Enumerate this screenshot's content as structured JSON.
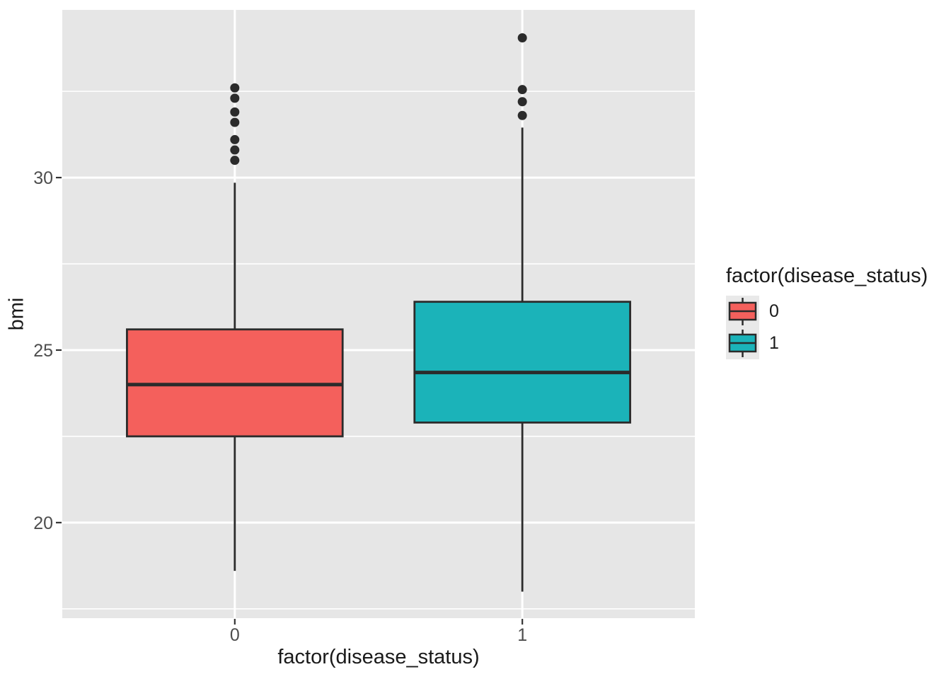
{
  "figure": {
    "background": "#FFFFFF"
  },
  "chart_data": {
    "type": "boxplot",
    "title": "",
    "xlabel": "factor(disease_status)",
    "ylabel": "bmi",
    "categories": [
      "0",
      "1"
    ],
    "y_ticks": [
      20,
      25,
      30
    ],
    "y_minor_ticks": [
      17.5,
      22.5,
      27.5,
      32.5
    ],
    "ylim": [
      17.23,
      34.86
    ],
    "grid": true,
    "legend_position": "right",
    "panel_bg": "#E6E6E6",
    "grid_color": "#FFFFFF",
    "box_outline": "#2B2B2B",
    "tick_mark_color": "#333333",
    "tick_label_color": "#4D4D4D",
    "axis_title_color": "#1A1A1A",
    "legend_key_bg": "#E9E9E9",
    "series": [
      {
        "name": "0",
        "fill": "#F4605C",
        "whisker_low": 18.6,
        "q1": 22.5,
        "median": 24.0,
        "q3": 25.6,
        "whisker_high": 29.85,
        "outliers": [
          30.5,
          30.8,
          31.1,
          31.6,
          31.9,
          32.3,
          32.6
        ]
      },
      {
        "name": "1",
        "fill": "#1BB3B9",
        "whisker_low": 18.0,
        "q1": 22.9,
        "median": 24.35,
        "q3": 26.4,
        "whisker_high": 31.45,
        "outliers": [
          31.8,
          32.2,
          32.55,
          34.05
        ]
      }
    ],
    "legend": {
      "title": "factor(disease_status)",
      "entries": [
        {
          "label": "0",
          "fill": "#F4605C"
        },
        {
          "label": "1",
          "fill": "#1BB3B9"
        }
      ]
    }
  }
}
